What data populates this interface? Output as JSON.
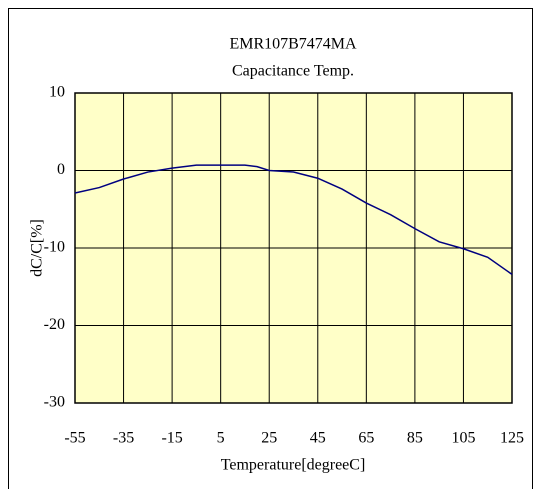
{
  "chart_data": {
    "type": "line",
    "title": "EMR107B7474MA",
    "subtitle": "Capacitance Temp.",
    "x_label": "Temperature[degreeC]",
    "y_label": "dC/C[%]",
    "x": [
      -55,
      -45,
      -35,
      -25,
      -15,
      -5,
      5,
      15,
      20,
      25,
      35,
      45,
      55,
      65,
      75,
      85,
      95,
      105,
      115,
      125
    ],
    "series": [
      {
        "color": "#000080",
        "values": [
          -2.9,
          -2.2,
          -1.1,
          -0.2,
          0.3,
          0.7,
          0.7,
          0.7,
          0.5,
          0.0,
          -0.2,
          -1.0,
          -2.4,
          -4.2,
          -5.7,
          -7.5,
          -9.2,
          -10.1,
          -11.2,
          -13.4
        ]
      }
    ],
    "xlim": [
      -55,
      125
    ],
    "xticks": [
      -55,
      -35,
      -15,
      5,
      25,
      45,
      65,
      85,
      105,
      125
    ],
    "ylim": [
      -30,
      10
    ],
    "yticks": [
      -30,
      -20,
      -10,
      0,
      10
    ],
    "grid": true,
    "plot_background": "#ffffc8"
  }
}
